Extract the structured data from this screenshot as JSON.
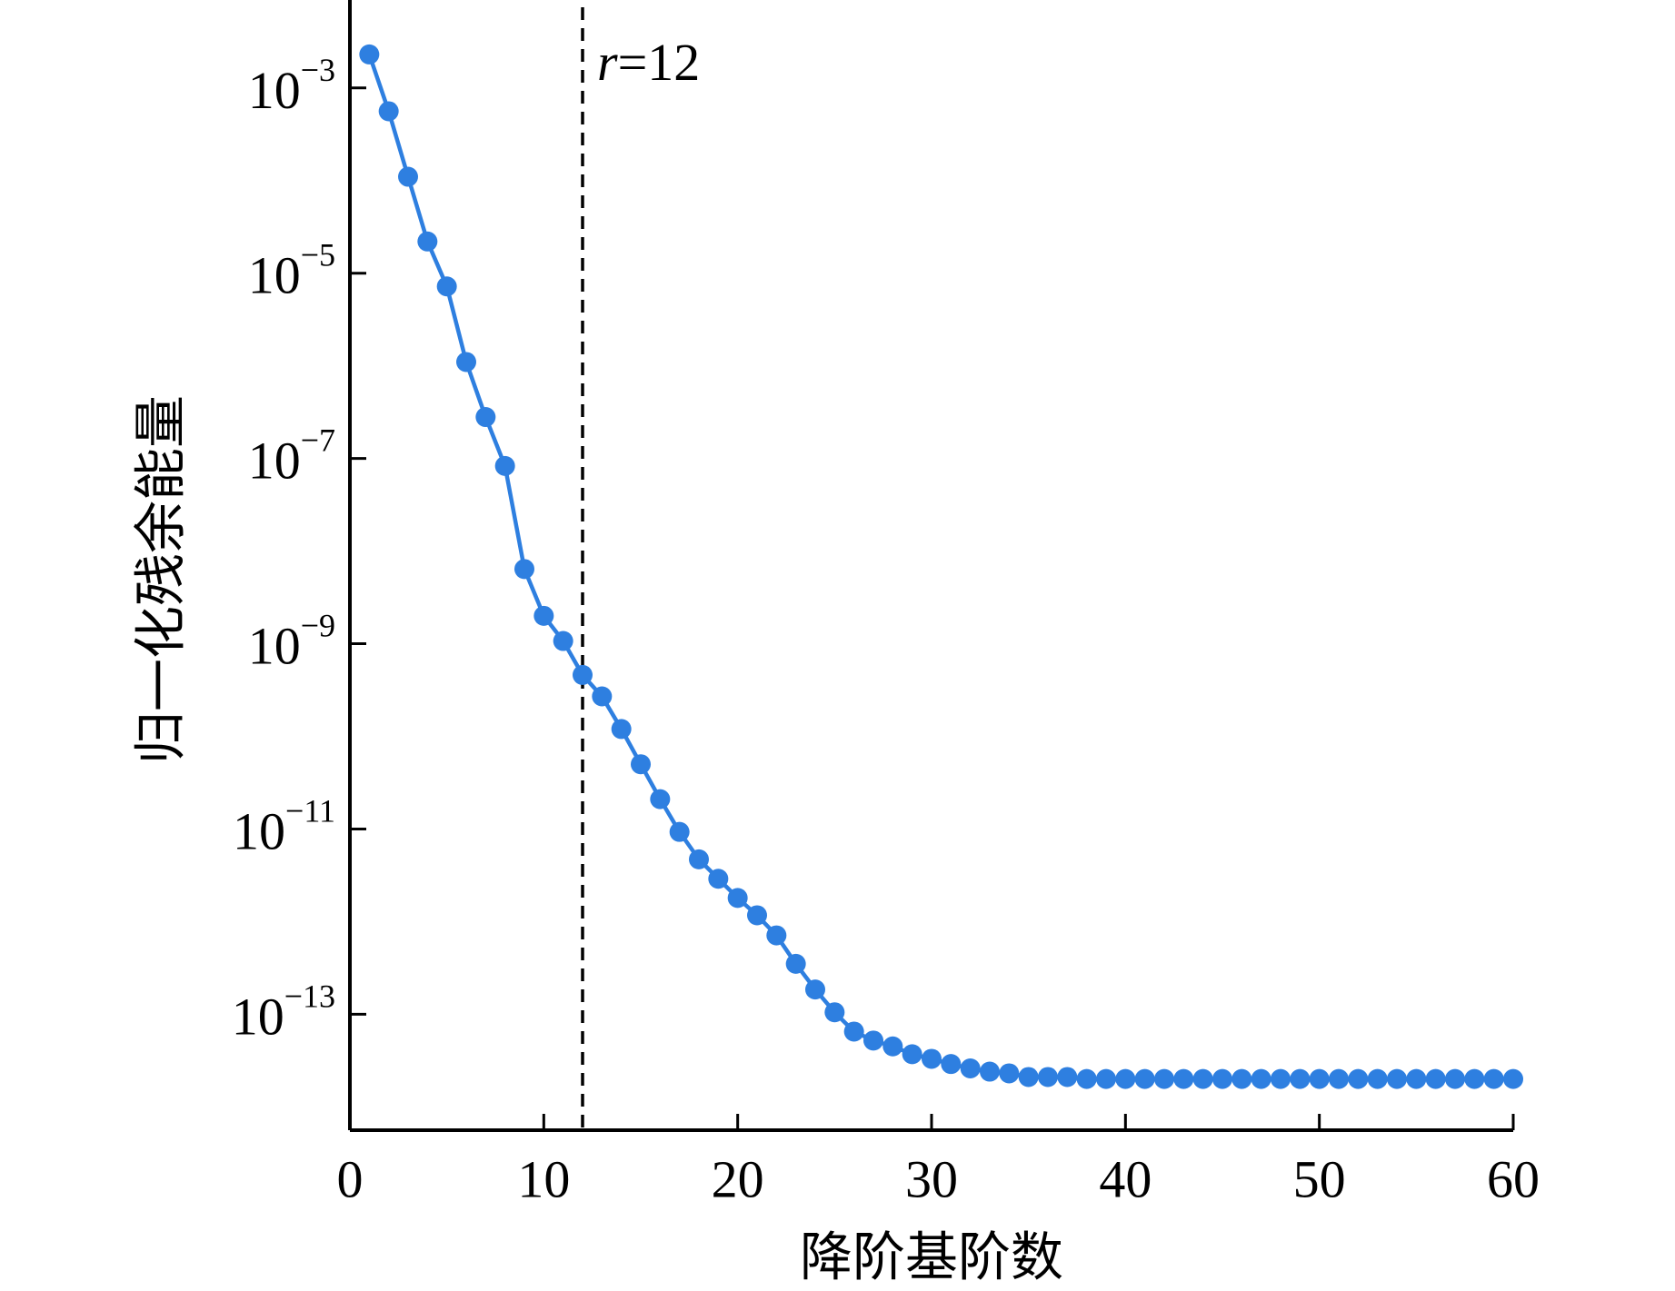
{
  "chart_data": {
    "type": "line",
    "x_label": "降阶基阶数",
    "y_label": "归一化残余能量",
    "annotation_var": "r",
    "annotation": "=12",
    "vline_x": 12,
    "y_log": true,
    "xlim": [
      0,
      60
    ],
    "xticks": [
      0,
      10,
      20,
      30,
      40,
      50,
      60
    ],
    "ylim": [
      0.0089,
      5.6e-15
    ],
    "yticks": [
      {
        "value": 0.001,
        "label": "10",
        "sup": "−3"
      },
      {
        "value": 1e-05,
        "label": "10",
        "sup": "−5"
      },
      {
        "value": 1e-07,
        "label": "10",
        "sup": "−7"
      },
      {
        "value": 1e-09,
        "label": "10",
        "sup": "−9"
      },
      {
        "value": 1e-11,
        "label": "10",
        "sup": "−11"
      },
      {
        "value": 1e-13,
        "label": "10",
        "sup": "−13"
      }
    ],
    "x": [
      1,
      2,
      3,
      4,
      5,
      6,
      7,
      8,
      9,
      10,
      11,
      12,
      13,
      14,
      15,
      16,
      17,
      18,
      19,
      20,
      21,
      22,
      23,
      24,
      25,
      26,
      27,
      28,
      29,
      30,
      31,
      32,
      33,
      34,
      35,
      36,
      37,
      38,
      39,
      40,
      41,
      42,
      43,
      44,
      45,
      46,
      47,
      48,
      49,
      50,
      51,
      52,
      53,
      54,
      55,
      56,
      57,
      58,
      59,
      60
    ],
    "series": [
      {
        "color": "#2e7fe0",
        "values": [
          0.0023,
          0.00056,
          0.00011,
          2.2e-05,
          7.2e-06,
          1.1e-06,
          2.8e-07,
          8.3e-08,
          6.4e-09,
          2e-09,
          1.07e-09,
          4.6e-10,
          2.7e-10,
          1.2e-10,
          5e-11,
          2.1e-11,
          9.3e-12,
          4.7e-12,
          2.9e-12,
          1.8e-12,
          1.17e-12,
          7.1e-13,
          3.5e-13,
          1.85e-13,
          1.05e-13,
          6.5e-14,
          5.2e-14,
          4.5e-14,
          3.7e-14,
          3.3e-14,
          2.9e-14,
          2.6e-14,
          2.4e-14,
          2.3e-14,
          2.1e-14,
          2.1e-14,
          2.1e-14,
          2e-14,
          2e-14,
          2e-14,
          2e-14,
          2e-14,
          2e-14,
          2e-14,
          2e-14,
          2e-14,
          2e-14,
          2e-14,
          2e-14,
          2e-14,
          2e-14,
          2e-14,
          2e-14,
          2e-14,
          2e-14,
          2e-14,
          2e-14,
          2e-14,
          2e-14,
          2e-14
        ]
      }
    ]
  }
}
